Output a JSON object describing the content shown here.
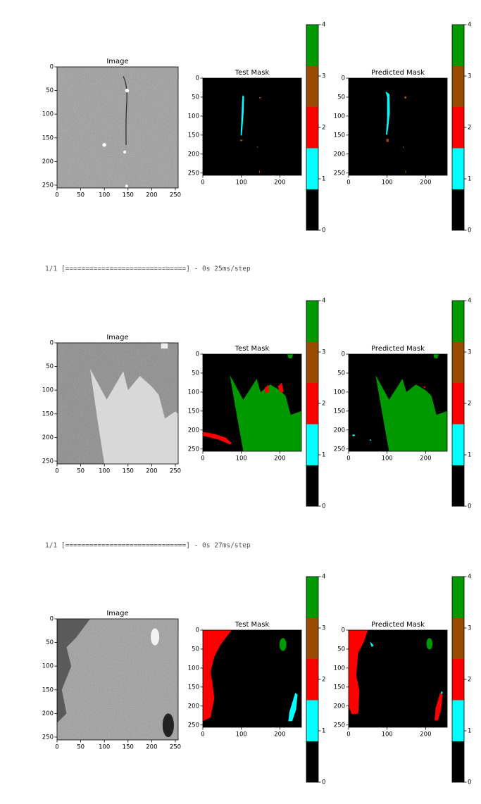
{
  "figures": [
    {
      "panels": [
        {
          "title": "Image",
          "xlim": [
            0,
            256
          ],
          "ylim": [
            0,
            256
          ],
          "xticks": [
            0,
            50,
            100,
            150,
            200,
            250
          ],
          "yticks": [
            0,
            50,
            100,
            150,
            200,
            250
          ]
        },
        {
          "title": "Test Mask",
          "xlim": [
            0,
            256
          ],
          "ylim": [
            0,
            256
          ],
          "xticks": [
            0,
            100,
            200
          ],
          "yticks": [
            0,
            50,
            100,
            150,
            200,
            250
          ]
        },
        {
          "title": "Predicted Mask",
          "xlim": [
            0,
            256
          ],
          "ylim": [
            0,
            256
          ],
          "xticks": [
            0,
            100,
            200
          ],
          "yticks": [
            0,
            50,
            100,
            150,
            200,
            250
          ]
        }
      ],
      "colorbars": [
        {
          "lim": [
            0,
            4
          ],
          "ticks": [
            0,
            1,
            2,
            3,
            4
          ],
          "colors": [
            "#000000",
            "#00ffff",
            "#ff0000",
            "#994c00",
            "#009900"
          ]
        },
        {
          "lim": [
            0,
            4
          ],
          "ticks": [
            0,
            1,
            2,
            3,
            4
          ],
          "colors": [
            "#000000",
            "#00ffff",
            "#ff0000",
            "#994c00",
            "#009900"
          ]
        }
      ]
    },
    {
      "panels": [
        {
          "title": "Image",
          "xlim": [
            0,
            256
          ],
          "ylim": [
            0,
            256
          ],
          "xticks": [
            0,
            50,
            100,
            150,
            200,
            250
          ],
          "yticks": [
            0,
            50,
            100,
            150,
            200,
            250
          ]
        },
        {
          "title": "Test Mask",
          "xlim": [
            0,
            256
          ],
          "ylim": [
            0,
            256
          ],
          "xticks": [
            0,
            100,
            200
          ],
          "yticks": [
            0,
            50,
            100,
            150,
            200,
            250
          ]
        },
        {
          "title": "Predicted Mask",
          "xlim": [
            0,
            256
          ],
          "ylim": [
            0,
            256
          ],
          "xticks": [
            0,
            100,
            200
          ],
          "yticks": [
            0,
            50,
            100,
            150,
            200,
            250
          ]
        }
      ],
      "colorbars": [
        {
          "lim": [
            0,
            4
          ],
          "ticks": [
            0,
            1,
            2,
            3,
            4
          ],
          "colors": [
            "#000000",
            "#00ffff",
            "#ff0000",
            "#994c00",
            "#009900"
          ]
        },
        {
          "lim": [
            0,
            4
          ],
          "ticks": [
            0,
            1,
            2,
            3,
            4
          ],
          "colors": [
            "#000000",
            "#00ffff",
            "#ff0000",
            "#994c00",
            "#009900"
          ]
        }
      ]
    },
    {
      "panels": [
        {
          "title": "Image",
          "xlim": [
            0,
            256
          ],
          "ylim": [
            0,
            256
          ],
          "xticks": [
            0,
            50,
            100,
            150,
            200,
            250
          ],
          "yticks": [
            0,
            50,
            100,
            150,
            200,
            250
          ]
        },
        {
          "title": "Test Mask",
          "xlim": [
            0,
            256
          ],
          "ylim": [
            0,
            256
          ],
          "xticks": [
            0,
            100,
            200
          ],
          "yticks": [
            0,
            50,
            100,
            150,
            200,
            250
          ]
        },
        {
          "title": "Predicted Mask",
          "xlim": [
            0,
            256
          ],
          "ylim": [
            0,
            256
          ],
          "xticks": [
            0,
            100,
            200
          ],
          "yticks": [
            0,
            50,
            100,
            150,
            200,
            250
          ]
        }
      ],
      "colorbars": [
        {
          "lim": [
            0,
            4
          ],
          "ticks": [
            0,
            1,
            2,
            3,
            4
          ],
          "colors": [
            "#000000",
            "#00ffff",
            "#ff0000",
            "#994c00",
            "#009900"
          ]
        },
        {
          "lim": [
            0,
            4
          ],
          "ticks": [
            0,
            1,
            2,
            3,
            4
          ],
          "colors": [
            "#000000",
            "#00ffff",
            "#ff0000",
            "#994c00",
            "#009900"
          ]
        }
      ]
    }
  ],
  "logs": [
    "1/1 [==============================] - 0s 25ms/step",
    "1/1 [==============================] - 0s 27ms/step"
  ]
}
